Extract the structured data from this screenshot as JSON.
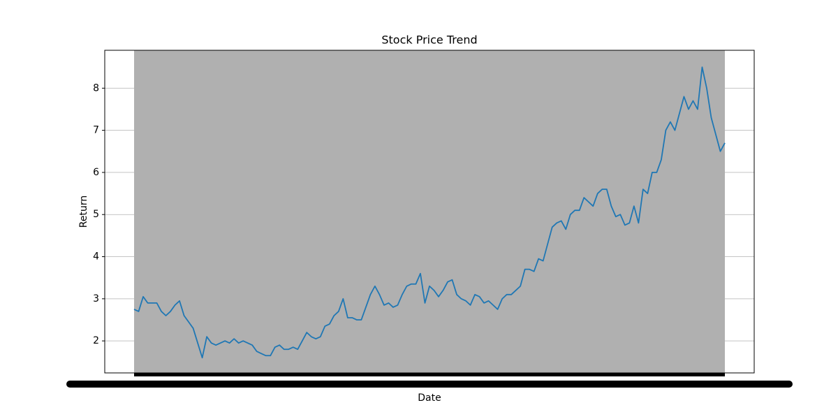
{
  "chart_data": {
    "type": "line",
    "title": "Stock Price Trend",
    "x_label": "Date",
    "y_label": "Return",
    "categories": [
      null,
      null,
      null,
      null,
      null,
      null,
      null,
      null,
      null,
      null,
      null,
      null,
      null,
      null,
      null,
      null,
      null,
      null,
      null,
      null,
      null,
      null,
      null,
      null,
      null,
      null,
      null,
      null,
      null,
      null,
      null,
      null,
      null,
      null,
      null,
      null,
      null,
      null,
      null,
      null,
      null,
      null,
      null,
      null,
      null,
      null,
      null,
      null,
      null,
      null,
      null,
      null,
      null,
      null,
      null,
      null,
      null,
      null,
      null,
      null,
      null,
      null,
      null,
      null,
      null,
      null,
      null,
      null,
      null,
      null,
      null,
      null,
      null,
      null,
      null,
      null,
      null,
      null,
      null,
      null,
      null,
      null,
      null,
      null,
      null,
      null,
      null,
      null,
      null,
      null,
      null,
      null,
      null,
      null,
      null,
      null,
      null,
      null,
      null,
      null,
      null,
      null,
      null,
      null,
      null,
      null,
      null,
      null,
      null,
      null,
      null,
      null,
      null,
      null,
      null,
      null,
      null,
      null,
      null,
      null,
      null,
      null,
      null,
      null,
      null,
      null,
      null,
      null,
      null,
      null,
      null
    ],
    "series": [
      {
        "name": "Return",
        "color": "#1f77b4",
        "values": [
          2.75,
          2.7,
          3.05,
          2.9,
          2.9,
          2.9,
          2.7,
          2.6,
          2.7,
          2.85,
          2.95,
          2.6,
          2.45,
          2.3,
          1.95,
          1.6,
          2.1,
          1.95,
          1.9,
          1.95,
          2.0,
          1.95,
          2.05,
          1.95,
          2.0,
          1.95,
          1.9,
          1.75,
          1.7,
          1.65,
          1.65,
          1.85,
          1.9,
          1.8,
          1.8,
          1.85,
          1.8,
          2.0,
          2.2,
          2.1,
          2.05,
          2.1,
          2.35,
          2.4,
          2.6,
          2.7,
          3.0,
          2.55,
          2.55,
          2.5,
          2.5,
          2.8,
          3.1,
          3.3,
          3.1,
          2.85,
          2.9,
          2.8,
          2.85,
          3.1,
          3.3,
          3.35,
          3.35,
          3.6,
          2.9,
          3.3,
          3.2,
          3.05,
          3.2,
          3.4,
          3.45,
          3.1,
          3.0,
          2.95,
          2.85,
          3.1,
          3.05,
          2.9,
          2.95,
          2.85,
          2.75,
          3.0,
          3.1,
          3.1,
          3.2,
          3.3,
          3.7,
          3.7,
          3.65,
          3.95,
          3.9,
          4.3,
          4.7,
          4.8,
          4.85,
          4.65,
          5.0,
          5.1,
          5.1,
          5.4,
          5.3,
          5.2,
          5.5,
          5.6,
          5.6,
          5.2,
          4.95,
          5.0,
          4.75,
          4.8,
          5.2,
          4.8,
          5.6,
          5.5,
          6.0,
          6.0,
          6.3,
          7.0,
          7.2,
          7.0,
          7.4,
          7.8,
          7.5,
          7.7,
          7.5,
          8.5,
          8.0,
          7.3,
          6.9,
          6.5,
          6.7
        ]
      }
    ],
    "ylim": [
      1.24,
      8.9
    ],
    "yticks": [
      2,
      3,
      4,
      5,
      6,
      7,
      8
    ],
    "grid": true
  }
}
